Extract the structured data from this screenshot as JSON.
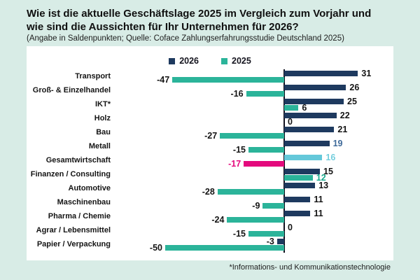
{
  "header": {
    "title_line1": "Wie ist die aktuelle Geschäftslage 2025 im Vergleich zum Vorjahr und",
    "title_line2": "wie sind die Aussichten für Ihr Unternehmen für 2026?",
    "subtitle": "(Angabe in Saldenpunkten; Quelle: Coface Zahlungserfahrungsstudie Deutschland 2025)"
  },
  "footnote": "*Informations- und Kommunikationstechnologie",
  "colors": {
    "background": "#D8ECE6",
    "panel": "#FFFFFF",
    "series_2026": "#1E3A5F",
    "series_2025": "#2BB49A",
    "highlight_2026": "#64C8DA",
    "highlight_2025": "#E40A7D",
    "axis": "#10101E",
    "text": "#141414"
  },
  "chart_data": {
    "type": "bar",
    "orientation": "horizontal",
    "value_unit": "Saldenpunkte",
    "xlim": [
      -55,
      35
    ],
    "grid": false,
    "zero_line": true,
    "legend": {
      "position": "top-center",
      "entries": [
        {
          "label": "2026",
          "color": "#1E3A5F"
        },
        {
          "label": "2025",
          "color": "#2BB49A"
        }
      ]
    },
    "categories": [
      "Transport",
      "Groß- & Einzelhandel",
      "IKT*",
      "Holz",
      "Bau",
      "Metall",
      "Gesamtwirtschaft",
      "Finanzen / Consulting",
      "Automotive",
      "Maschinenbau",
      "Pharma / Chemie",
      "Agrar / Lebensmittel",
      "Papier / Verpackung"
    ],
    "series": [
      {
        "name": "2026",
        "values": [
          31,
          26,
          25,
          22,
          21,
          19,
          16,
          15,
          13,
          11,
          11,
          0,
          -3
        ]
      },
      {
        "name": "2025",
        "values": [
          -47,
          -16,
          6,
          0,
          -27,
          -15,
          -17,
          12,
          -28,
          -9,
          -24,
          -15,
          -50
        ]
      }
    ],
    "highlight": {
      "category": "Gesamtwirtschaft",
      "row_index": 6,
      "bar_colors": {
        "2026": "#64C8DA",
        "2025": "#E40A7D"
      }
    },
    "value_label_colors": {
      "2026": [
        null,
        null,
        null,
        null,
        null,
        "#3F6A9A",
        "#74CEDD",
        null,
        null,
        null,
        null,
        null,
        null
      ],
      "2025": [
        null,
        null,
        null,
        null,
        null,
        null,
        "#E40A7D",
        "#18A98C",
        null,
        null,
        null,
        null,
        null
      ]
    }
  }
}
